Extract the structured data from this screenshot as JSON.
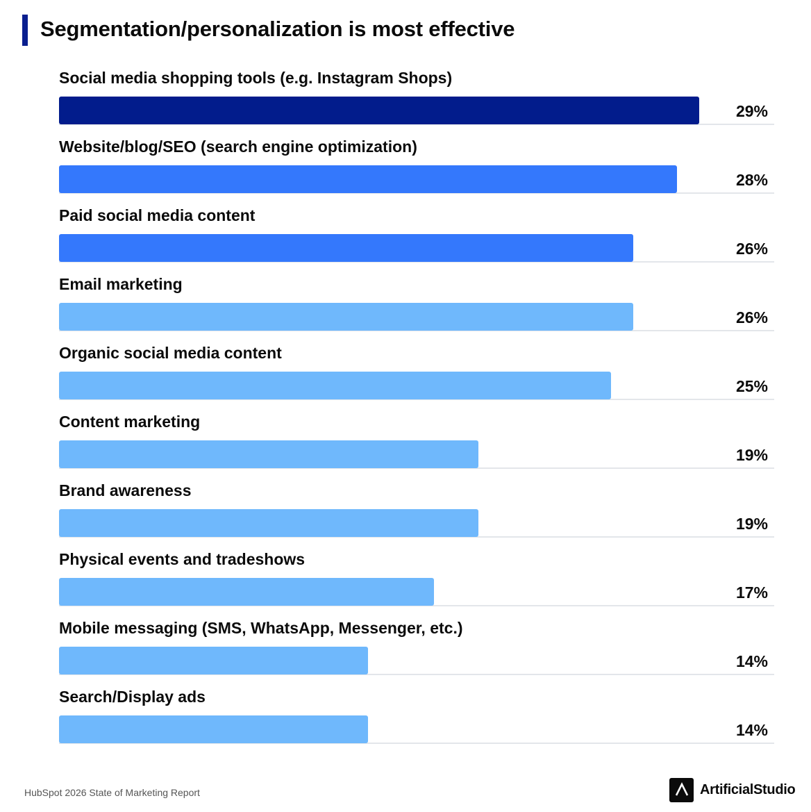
{
  "header": {
    "title": "Segmentation/personalization is most effective"
  },
  "chart_data": {
    "type": "bar",
    "orientation": "horizontal",
    "title": "Segmentation/personalization is most effective",
    "categories": [
      "Social media shopping tools (e.g. Instagram Shops)",
      "Website/blog/SEO (search engine optimization)",
      "Paid social media content",
      "Email marketing",
      "Organic social media content",
      "Content marketing",
      "Brand awareness",
      "Physical events and tradeshows",
      "Mobile messaging (SMS, WhatsApp, Messenger, etc.)",
      "Search/Display ads"
    ],
    "values": [
      29,
      28,
      26,
      26,
      25,
      19,
      19,
      17,
      14,
      14
    ],
    "value_labels": [
      "29%",
      "28%",
      "26%",
      "26%",
      "25%",
      "19%",
      "19%",
      "17%",
      "14%",
      "14%"
    ],
    "unit": "%",
    "xlim": [
      0,
      32.4
    ],
    "bar_colors": [
      "#021c8c",
      "#3478fc",
      "#3478fc",
      "#6fb8fc",
      "#6fb8fc",
      "#6fb8fc",
      "#6fb8fc",
      "#6fb8fc",
      "#6fb8fc",
      "#6fb8fc"
    ],
    "grid": false,
    "legend": "none"
  },
  "footer": {
    "source": "HubSpot 2026 State of Marketing Report",
    "brand_name": "ArtificialStudio",
    "brand_icon": "artificialstudio-logo-icon"
  }
}
